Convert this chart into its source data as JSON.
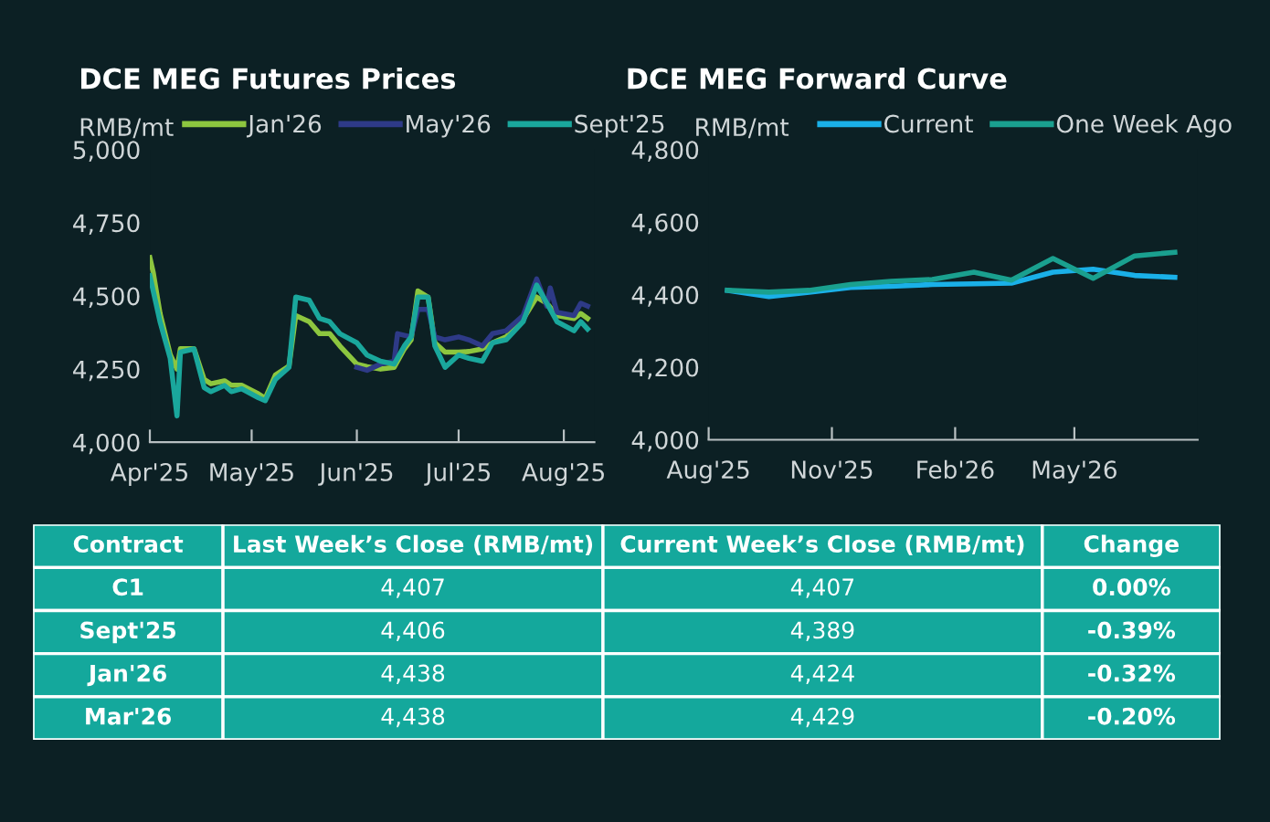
{
  "chart_data": [
    {
      "type": "line",
      "title": "DCE MEG Futures Prices",
      "ylabel": "RMB/mt",
      "legend": "top",
      "grid": false,
      "xlim": [
        "2025-04-01",
        "2025-08-10"
      ],
      "xticks": [
        {
          "value": "2025-04-01",
          "label": "Apr'25"
        },
        {
          "value": "2025-05-01",
          "label": "May'25"
        },
        {
          "value": "2025-06-01",
          "label": "Jun'25"
        },
        {
          "value": "2025-07-01",
          "label": "Jul'25"
        },
        {
          "value": "2025-08-01",
          "label": "Aug'25"
        }
      ],
      "ylim": [
        4000,
        5000
      ],
      "yticks": [
        {
          "value": 4000,
          "label": "4,000"
        },
        {
          "value": 4250,
          "label": "4,250"
        },
        {
          "value": 4500,
          "label": "4,500"
        },
        {
          "value": 4750,
          "label": "4,750"
        },
        {
          "value": 5000,
          "label": "5,000"
        }
      ],
      "series": [
        {
          "name": "Jan'26",
          "color": "#8dc63f",
          "x": [
            "2025-04-01",
            "2025-04-02",
            "2025-04-04",
            "2025-04-07",
            "2025-04-09",
            "2025-04-10",
            "2025-04-14",
            "2025-04-17",
            "2025-04-19",
            "2025-04-23",
            "2025-04-25",
            "2025-04-28",
            "2025-05-03",
            "2025-05-05",
            "2025-05-08",
            "2025-05-12",
            "2025-05-14",
            "2025-05-18",
            "2025-05-21",
            "2025-05-24",
            "2025-05-27",
            "2025-06-01",
            "2025-06-04",
            "2025-06-08",
            "2025-06-12",
            "2025-06-15",
            "2025-06-17",
            "2025-06-19",
            "2025-06-22",
            "2025-06-24",
            "2025-06-27",
            "2025-07-01",
            "2025-07-04",
            "2025-07-08",
            "2025-07-11",
            "2025-07-15",
            "2025-07-20",
            "2025-07-24",
            "2025-07-27",
            "2025-07-30",
            "2025-08-04",
            "2025-08-06",
            "2025-08-08"
          ],
          "values": [
            4631,
            4580,
            4440,
            4300,
            4250,
            4320,
            4320,
            4215,
            4200,
            4210,
            4195,
            4195,
            4165,
            4150,
            4230,
            4260,
            4433,
            4412,
            4371,
            4371,
            4329,
            4267,
            4258,
            4250,
            4256,
            4319,
            4350,
            4517,
            4496,
            4340,
            4308,
            4308,
            4310,
            4319,
            4340,
            4360,
            4420,
            4496,
            4475,
            4433,
            4423,
            4440,
            4423
          ]
        },
        {
          "name": "May'26",
          "color": "#2e3a87",
          "x": [
            "2025-06-01",
            "2025-06-04",
            "2025-06-08",
            "2025-06-12",
            "2025-06-13",
            "2025-06-17",
            "2025-06-19",
            "2025-06-22",
            "2025-06-24",
            "2025-06-27",
            "2025-07-01",
            "2025-07-04",
            "2025-07-08",
            "2025-07-11",
            "2025-07-15",
            "2025-07-20",
            "2025-07-24",
            "2025-07-27",
            "2025-07-28",
            "2025-07-30",
            "2025-08-04",
            "2025-08-06",
            "2025-08-08"
          ],
          "values": [
            4256,
            4246,
            4267,
            4277,
            4371,
            4360,
            4454,
            4454,
            4360,
            4350,
            4360,
            4350,
            4329,
            4371,
            4381,
            4433,
            4558,
            4465,
            4527,
            4444,
            4433,
            4475,
            4465
          ]
        },
        {
          "name": "Sept'25",
          "color": "#1aa79c",
          "x": [
            "2025-04-01",
            "2025-04-02",
            "2025-04-04",
            "2025-04-07",
            "2025-04-09",
            "2025-04-10",
            "2025-04-14",
            "2025-04-17",
            "2025-04-19",
            "2025-04-23",
            "2025-04-25",
            "2025-04-28",
            "2025-05-03",
            "2025-05-05",
            "2025-05-08",
            "2025-05-12",
            "2025-05-14",
            "2025-05-18",
            "2025-05-21",
            "2025-05-24",
            "2025-05-27",
            "2025-06-01",
            "2025-06-04",
            "2025-06-08",
            "2025-06-12",
            "2025-06-15",
            "2025-06-17",
            "2025-06-19",
            "2025-06-22",
            "2025-06-24",
            "2025-06-27",
            "2025-07-01",
            "2025-07-04",
            "2025-07-08",
            "2025-07-11",
            "2025-07-15",
            "2025-07-20",
            "2025-07-24",
            "2025-07-27",
            "2025-07-30",
            "2025-08-04",
            "2025-08-06",
            "2025-08-08"
          ],
          "values": [
            4569,
            4517,
            4412,
            4287,
            4090,
            4308,
            4319,
            4187,
            4173,
            4194,
            4173,
            4183,
            4152,
            4142,
            4215,
            4256,
            4496,
            4485,
            4423,
            4412,
            4371,
            4340,
            4298,
            4277,
            4267,
            4329,
            4360,
            4496,
            4496,
            4329,
            4256,
            4298,
            4287,
            4277,
            4340,
            4350,
            4412,
            4537,
            4475,
            4412,
            4381,
            4412,
            4387
          ]
        }
      ]
    },
    {
      "type": "line",
      "title": "DCE MEG Forward Curve",
      "ylabel": "RMB/mt",
      "legend": "top",
      "grid": false,
      "xlim": [
        "2025-08-01",
        "2026-08-01"
      ],
      "xticks": [
        {
          "value": "2025-08-01",
          "label": "Aug'25"
        },
        {
          "value": "2025-11-01",
          "label": "Nov'25"
        },
        {
          "value": "2026-02-01",
          "label": "Feb'26"
        },
        {
          "value": "2026-05-01",
          "label": "May'26"
        }
      ],
      "ylim": [
        4000,
        4800
      ],
      "yticks": [
        {
          "value": 4000,
          "label": "4,000"
        },
        {
          "value": 4200,
          "label": "4,200"
        },
        {
          "value": 4400,
          "label": "4,400"
        },
        {
          "value": 4600,
          "label": "4,600"
        },
        {
          "value": 4800,
          "label": "4,800"
        }
      ],
      "x": [
        "2025-08-15",
        "2025-09-15",
        "2025-10-15",
        "2025-11-15",
        "2025-12-15",
        "2026-01-15",
        "2026-02-15",
        "2026-03-15",
        "2026-04-15",
        "2026-05-15",
        "2026-06-15",
        "2026-07-15"
      ],
      "series": [
        {
          "name": "Current",
          "color": "#1ab0e8",
          "values": [
            4412,
            4395,
            4407,
            4420,
            4423,
            4428,
            4430,
            4432,
            4462,
            4470,
            4453,
            4448
          ]
        },
        {
          "name": "One Week Ago",
          "color": "#1aa08f",
          "values": [
            4412,
            4407,
            4412,
            4428,
            4437,
            4442,
            4462,
            4440,
            4500,
            4445,
            4507,
            4517
          ]
        }
      ]
    },
    {
      "type": "other",
      "categories": [
        "Contract",
        "Last Week’s Close (RMB/mt)",
        "Current Week’s Close (RMB/mt)",
        "Change"
      ],
      "y_categories": [
        "C1",
        "Sept'25",
        "Jan'26",
        "Mar'26"
      ],
      "cell_labels": [
        [
          "4,407",
          "4,407",
          "0.00%"
        ],
        [
          "4,406",
          "4,389",
          "-0.39%"
        ],
        [
          "4,438",
          "4,424",
          "-0.32%"
        ],
        [
          "4,438",
          "4,429",
          "-0.20%"
        ]
      ]
    }
  ]
}
